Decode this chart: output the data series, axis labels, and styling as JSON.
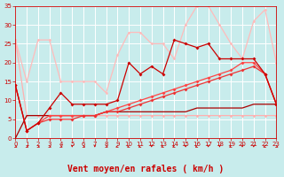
{
  "background_color": "#c8ecec",
  "grid_color": "#ffffff",
  "xlabel": "Vent moyen/en rafales ( km/h )",
  "xlabel_color": "#cc0000",
  "xlabel_fontsize": 7,
  "xtick_color": "#cc0000",
  "ytick_color": "#cc0000",
  "xmin": 0,
  "xmax": 23,
  "ymin": 0,
  "ymax": 35,
  "yticks": [
    0,
    5,
    10,
    15,
    20,
    25,
    30,
    35
  ],
  "xticks": [
    0,
    1,
    2,
    3,
    4,
    5,
    6,
    7,
    8,
    9,
    10,
    11,
    12,
    13,
    14,
    15,
    16,
    17,
    18,
    19,
    20,
    21,
    22,
    23
  ],
  "line1_x": [
    0,
    1,
    2,
    3,
    4,
    5,
    6,
    7,
    8,
    9,
    10,
    11,
    12,
    13,
    14,
    15,
    16,
    17,
    18,
    19,
    20,
    21,
    22,
    23
  ],
  "line1_y": [
    26,
    6,
    6,
    6,
    6,
    6,
    6,
    6,
    6,
    6,
    6,
    6,
    6,
    6,
    6,
    6,
    6,
    6,
    6,
    6,
    6,
    6,
    6,
    6
  ],
  "line1_color": "#ffb0b0",
  "line2_x": [
    0,
    1,
    2,
    3,
    4,
    5,
    6,
    7,
    8,
    9,
    10,
    11,
    12,
    13,
    14,
    15,
    16,
    17,
    18,
    19,
    20,
    21,
    22,
    23
  ],
  "line2_y": [
    26,
    15,
    26,
    26,
    15,
    15,
    15,
    15,
    12,
    22,
    28,
    28,
    25,
    25,
    21,
    30,
    35,
    35,
    30,
    25,
    21,
    31,
    34,
    20
  ],
  "line2_color": "#ffbbbb",
  "line3_x": [
    0,
    1,
    2,
    3,
    4,
    5,
    6,
    7,
    8,
    9,
    10,
    11,
    12,
    13,
    14,
    15,
    16,
    17,
    18,
    19,
    20,
    21,
    22,
    23
  ],
  "line3_y": [
    14,
    2,
    4,
    8,
    12,
    9,
    9,
    9,
    9,
    10,
    20,
    17,
    19,
    17,
    26,
    25,
    24,
    25,
    21,
    21,
    21,
    21,
    17,
    9
  ],
  "line3_color": "#cc0000",
  "line4_x": [
    0,
    1,
    2,
    3,
    4,
    5,
    6,
    7,
    8,
    9,
    10,
    11,
    12,
    13,
    14,
    15,
    16,
    17,
    18,
    19,
    20,
    21,
    22,
    23
  ],
  "line4_y": [
    14,
    2,
    4,
    6,
    6,
    6,
    6,
    6,
    7,
    8,
    9,
    10,
    11,
    12,
    13,
    14,
    15,
    16,
    17,
    18,
    20,
    20,
    17,
    9
  ],
  "line4_color": "#ff4444",
  "line5_x": [
    0,
    1,
    2,
    3,
    4,
    5,
    6,
    7,
    8,
    9,
    10,
    11,
    12,
    13,
    14,
    15,
    16,
    17,
    18,
    19,
    20,
    21,
    22,
    23
  ],
  "line5_y": [
    14,
    2,
    4,
    5,
    5,
    5,
    6,
    6,
    7,
    7,
    8,
    9,
    10,
    11,
    12,
    13,
    14,
    15,
    16,
    17,
    18,
    19,
    17,
    9
  ],
  "line5_color": "#ee3333",
  "line6_x": [
    0,
    1,
    2,
    3,
    4,
    5,
    6,
    7,
    8,
    9,
    10,
    11,
    12,
    13,
    14,
    15,
    16,
    17,
    18,
    19,
    20,
    21,
    22,
    23
  ],
  "line6_y": [
    0,
    6,
    6,
    6,
    6,
    6,
    6,
    6,
    7,
    7,
    7,
    7,
    7,
    7,
    7,
    7,
    8,
    8,
    8,
    8,
    8,
    9,
    9,
    9
  ],
  "line6_color": "#aa0000",
  "arrow_angles": [
    45,
    45,
    45,
    45,
    45,
    0,
    45,
    0,
    45,
    315,
    315,
    315,
    0,
    315,
    315,
    0,
    315,
    0,
    0,
    315,
    0,
    0,
    315,
    45
  ]
}
